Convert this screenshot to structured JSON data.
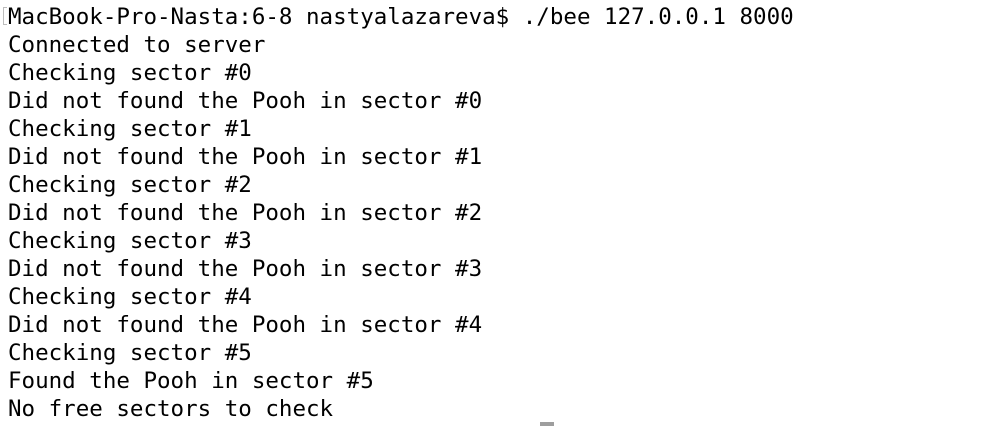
{
  "terminal": {
    "lines": [
      "MacBook-Pro-Nasta:6-8 nastyalazareva$ ./bee 127.0.0.1 8000",
      "Connected to server",
      "Checking sector #0",
      "Did not found the Pooh in sector #0",
      "Checking sector #1",
      "Did not found the Pooh in sector #1",
      "Checking sector #2",
      "Did not found the Pooh in sector #2",
      "Checking sector #3",
      "Did not found the Pooh in sector #3",
      "Checking sector #4",
      "Did not found the Pooh in sector #4",
      "Checking sector #5",
      "Found the Pooh in sector #5",
      "No free sectors to check"
    ]
  }
}
